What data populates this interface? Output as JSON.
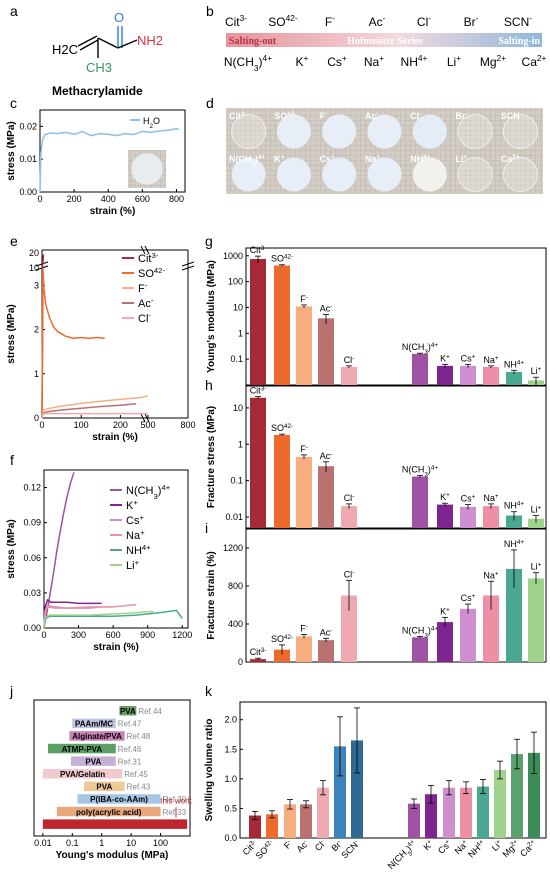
{
  "panels": {
    "a": {
      "letter": "a",
      "molecule": "Methacrylamide",
      "atoms": {
        "h2c": "H2C",
        "o": "O",
        "ch3": "CH3",
        "nh2": "NH2"
      }
    },
    "b": {
      "letter": "b",
      "anions": [
        "Cit3-",
        "SO42-",
        "F-",
        "Ac-",
        "Cl-",
        "Br-",
        "SCN-"
      ],
      "cations": [
        "N(CH3)4+",
        "K+",
        "Cs+",
        "Na+",
        "NH4+",
        "Li+",
        "Mg2+",
        "Ca2+"
      ],
      "bar_left": "Salting-out",
      "bar_center": "Hofmeister Series",
      "bar_right": "Salting-in",
      "colors": {
        "left": "#e6949c",
        "right": "#8fb8da"
      }
    },
    "c": {
      "letter": "c",
      "xlabel": "strain (%)",
      "ylabel": "stress (MPa)",
      "legend": "H2O",
      "xticks": [
        "0",
        "200",
        "400",
        "600",
        "800"
      ],
      "yticks": [
        "0.00",
        "0.01",
        "0.02"
      ],
      "color": "#8ec3e6"
    },
    "d": {
      "letter": "d",
      "row1": [
        "Cit3-",
        "SO42-",
        "F-",
        "Ac-",
        "Cl-",
        "Br-",
        "SCN-"
      ],
      "row2": [
        "N(CH3)4+",
        "K+",
        "Cs+",
        "Na+",
        "NH4+",
        "Li+",
        "Ca2+"
      ]
    },
    "e": {
      "letter": "e",
      "xlabel": "strain (%)",
      "ylabel": "stress (MPa)",
      "legend": [
        "Cit3-",
        "SO42-",
        "F-",
        "Ac-",
        "Cl-"
      ],
      "xticks": [
        "0",
        "100",
        "200",
        "500",
        "800"
      ],
      "yticks_low": [
        "0",
        "1",
        "2",
        "3"
      ],
      "yticks_high": [
        "10",
        "20"
      ]
    },
    "f": {
      "letter": "f",
      "xlabel": "strain (%)",
      "ylabel": "stress (MPa)",
      "legend": [
        "N(CH3)4+",
        "K+",
        "Cs+",
        "Na+",
        "NH4+",
        "Li+"
      ],
      "xticks": [
        "0",
        "300",
        "600",
        "900",
        "1200"
      ],
      "yticks": [
        "0.00",
        "0.03",
        "0.06",
        "0.09",
        "0.12"
      ]
    },
    "g": {
      "letter": "g",
      "ylabel": "Young's modulus (MPa)",
      "yticks": [
        "0.1",
        "1",
        "10",
        "100",
        "1000"
      ]
    },
    "h": {
      "letter": "h",
      "ylabel": "Fracture stress (MPa)",
      "yticks": [
        "0.01",
        "0.1",
        "1",
        "10"
      ]
    },
    "i": {
      "letter": "i",
      "ylabel": "Fracture strain (%)",
      "yticks": [
        "0",
        "400",
        "800",
        "1200"
      ]
    },
    "j": {
      "letter": "j",
      "xlabel": "Young's modulus (MPa)",
      "xticks": [
        "0.01",
        "0.1",
        "1",
        "10",
        "100"
      ],
      "this_work": "this work"
    },
    "k": {
      "letter": "k",
      "ylabel": "Swelling volume ratio",
      "yticks": [
        "0.0",
        "0.5",
        "1.0",
        "1.5",
        "2.0"
      ]
    }
  },
  "chart_data": [
    {
      "panel": "c",
      "type": "line",
      "xlabel": "strain (%)",
      "ylabel": "stress (MPa)",
      "xlim": [
        0,
        850
      ],
      "ylim": [
        0,
        0.025
      ],
      "series": [
        {
          "name": "H2O",
          "color": "#8ec3e6",
          "x": [
            0,
            5,
            15,
            30,
            60,
            100,
            150,
            200,
            250,
            300,
            350,
            400,
            450,
            500,
            550,
            600,
            650,
            700,
            750,
            800,
            815
          ],
          "y": [
            0,
            0.012,
            0.016,
            0.0175,
            0.018,
            0.0178,
            0.0182,
            0.0176,
            0.0184,
            0.0172,
            0.0178,
            0.0176,
            0.0172,
            0.0178,
            0.0175,
            0.0185,
            0.0182,
            0.0186,
            0.0188,
            0.0193,
            0.019
          ]
        }
      ]
    },
    {
      "panel": "e",
      "type": "line",
      "xlabel": "strain (%)",
      "ylabel": "stress (MPa)",
      "series": [
        {
          "name": "Cit3-",
          "color": "#a52a36",
          "x": [
            0,
            1,
            2,
            3,
            4
          ],
          "y": [
            0,
            5,
            10,
            15,
            19
          ]
        },
        {
          "name": "SO42-",
          "color": "#ec6a2b",
          "x": [
            0,
            2,
            5,
            10,
            20,
            30,
            40,
            60,
            80,
            100,
            120,
            140,
            160
          ],
          "y": [
            0,
            3.5,
            2.9,
            2.55,
            2.25,
            2.05,
            1.95,
            1.85,
            1.8,
            1.82,
            1.8,
            1.82,
            1.8
          ]
        },
        {
          "name": "F-",
          "color": "#f6ae80",
          "x": [
            0,
            3,
            20,
            50,
            100,
            150,
            200,
            250,
            300
          ],
          "y": [
            0,
            0.18,
            0.22,
            0.27,
            0.33,
            0.38,
            0.42,
            0.46,
            0.5
          ]
        },
        {
          "name": "Ac-",
          "color": "#b97270",
          "x": [
            0,
            3,
            20,
            50,
            100,
            150,
            200,
            240
          ],
          "y": [
            0,
            0.12,
            0.15,
            0.18,
            0.22,
            0.26,
            0.29,
            0.32
          ]
        },
        {
          "name": "Cl-",
          "color": "#eeaaaf",
          "x": [
            0,
            3,
            50,
            100,
            200,
            250,
            300
          ],
          "y": [
            0,
            0.1,
            0.1,
            0.1,
            0.1,
            0.1,
            0.1
          ]
        }
      ]
    },
    {
      "panel": "f",
      "type": "line",
      "xlabel": "strain (%)",
      "ylabel": "stress (MPa)",
      "xlim": [
        0,
        1250
      ],
      "ylim": [
        0,
        0.135
      ],
      "series": [
        {
          "name": "N(CH3)4+",
          "color": "#9f52a4",
          "x": [
            0,
            20,
            50,
            80,
            110,
            140,
            170,
            200,
            230,
            260
          ],
          "y": [
            0,
            0.01,
            0.028,
            0.045,
            0.065,
            0.082,
            0.098,
            0.112,
            0.124,
            0.133
          ]
        },
        {
          "name": "K+",
          "color": "#7e2590",
          "x": [
            0,
            10,
            30,
            60,
            100,
            200,
            300,
            400,
            500
          ],
          "y": [
            0,
            0.018,
            0.024,
            0.022,
            0.022,
            0.022,
            0.021,
            0.021,
            0.021
          ]
        },
        {
          "name": "Cs+",
          "color": "#cf8fcf",
          "x": [
            0,
            10,
            30,
            100,
            200,
            300,
            400,
            500,
            600
          ],
          "y": [
            0,
            0.015,
            0.019,
            0.018,
            0.017,
            0.017,
            0.017,
            0.018,
            0.018
          ]
        },
        {
          "name": "Na+",
          "color": "#ef8fa6",
          "x": [
            0,
            10,
            30,
            100,
            200,
            400,
            600,
            800
          ],
          "y": [
            0,
            0.014,
            0.018,
            0.017,
            0.017,
            0.018,
            0.018,
            0.02
          ]
        },
        {
          "name": "NH4+",
          "color": "#4aa891",
          "x": [
            0,
            10,
            50,
            200,
            400,
            600,
            800,
            1000,
            1150,
            1200
          ],
          "y": [
            0,
            0.008,
            0.01,
            0.01,
            0.01,
            0.01,
            0.011,
            0.013,
            0.015,
            0.008
          ]
        },
        {
          "name": "Li+",
          "color": "#9fd38b",
          "x": [
            0,
            10,
            50,
            200,
            400,
            600,
            800,
            900,
            950
          ],
          "y": [
            0,
            0.009,
            0.011,
            0.011,
            0.011,
            0.012,
            0.013,
            0.014,
            0.014
          ]
        }
      ]
    },
    {
      "panel": "g",
      "type": "bar",
      "yscale": "log",
      "ylabel": "Young's modulus (MPa)",
      "categories": [
        "Cit3-",
        "SO42-",
        "F-",
        "Ac-",
        "Cl-",
        "N(CH3)4+",
        "K+",
        "Cs+",
        "Na+",
        "NH4+",
        "Li+"
      ],
      "values": [
        750,
        420,
        11,
        3.8,
        0.05,
        0.16,
        0.055,
        0.055,
        0.05,
        0.032,
        0.015
      ],
      "errors": [
        220,
        30,
        1.5,
        1.5,
        0.005,
        0.01,
        0.008,
        0.008,
        0.005,
        0.005,
        0.005
      ],
      "ylim": [
        0.01,
        2000
      ]
    },
    {
      "panel": "h",
      "type": "bar",
      "yscale": "log",
      "ylabel": "Fracture stress (MPa)",
      "categories": [
        "Cit3-",
        "SO42-",
        "F-",
        "Ac-",
        "Cl-",
        "N(CH3)4+",
        "K+",
        "Cs+",
        "Na+",
        "NH4+",
        "Li+"
      ],
      "values": [
        19,
        1.8,
        0.45,
        0.25,
        0.02,
        0.13,
        0.022,
        0.019,
        0.02,
        0.011,
        0.009
      ],
      "errors": [
        1.5,
        0.1,
        0.06,
        0.08,
        0.003,
        0.01,
        0.002,
        0.003,
        0.003,
        0.003,
        0.002
      ],
      "ylim": [
        0.005,
        40
      ]
    },
    {
      "panel": "i",
      "type": "bar",
      "ylabel": "Fracture strain (%)",
      "categories": [
        "Cit3-",
        "SO42-",
        "F-",
        "Ac-",
        "Cl-",
        "N(CH3)4+",
        "K+",
        "Cs+",
        "Na+",
        "NH4+",
        "Li+"
      ],
      "values": [
        30,
        130,
        270,
        230,
        700,
        260,
        420,
        560,
        700,
        980,
        880
      ],
      "errors": [
        10,
        50,
        20,
        20,
        160,
        10,
        50,
        50,
        150,
        200,
        60
      ],
      "ylim": [
        0,
        1400
      ]
    },
    {
      "panel": "j",
      "type": "bar",
      "xscale": "log",
      "xlabel": "Young's modulus (MPa)",
      "categories": [
        "PVA",
        "PAAm/MC",
        "Alginate/PVA",
        "ATMP-PVA",
        "PVA",
        "PVA/Gelatin",
        "PVA",
        "P(IBA-co-AAm)",
        "poly(acrylic acid)",
        "this work"
      ],
      "refs": [
        "Ref.44",
        "Ref.47",
        "Ref.48",
        "Ref.46",
        "Ref.31",
        "Ref.45",
        "Ref.43",
        "Ref.30",
        "Ref.33",
        ""
      ],
      "ranges": [
        [
          4,
          15
        ],
        [
          0.1,
          3
        ],
        [
          0.08,
          6
        ],
        [
          0.015,
          3
        ],
        [
          0.09,
          3
        ],
        [
          0.01,
          5
        ],
        [
          0.25,
          6
        ],
        [
          0.15,
          100
        ],
        [
          0.03,
          100
        ],
        [
          0.01,
          800
        ]
      ],
      "colors": [
        "#6a9e60",
        "#bcc3de",
        "#c97fb7",
        "#5c9e63",
        "#c5b1d8",
        "#f2c9cc",
        "#f0c896",
        "#a6c6e6",
        "#e9a77d",
        "#c0262d"
      ],
      "xlim": [
        0.005,
        1000
      ]
    },
    {
      "panel": "k",
      "type": "bar",
      "ylabel": "Swelling volume ratio",
      "categories": [
        "Cit3-",
        "SO42-",
        "F-",
        "Ac-",
        "Cl-",
        "Br-",
        "SCN-",
        "N(CH3)4+",
        "K+",
        "Cs+",
        "Na+",
        "NH4+",
        "Li+",
        "Mg2+",
        "Ca2+"
      ],
      "values": [
        0.38,
        0.4,
        0.57,
        0.57,
        0.85,
        1.55,
        1.65,
        0.58,
        0.74,
        0.85,
        0.85,
        0.87,
        1.15,
        1.42,
        1.44
      ],
      "errors": [
        0.07,
        0.06,
        0.08,
        0.06,
        0.12,
        0.5,
        0.55,
        0.08,
        0.15,
        0.12,
        0.1,
        0.12,
        0.15,
        0.25,
        0.35
      ],
      "ylim": [
        0,
        2.3
      ]
    }
  ]
}
